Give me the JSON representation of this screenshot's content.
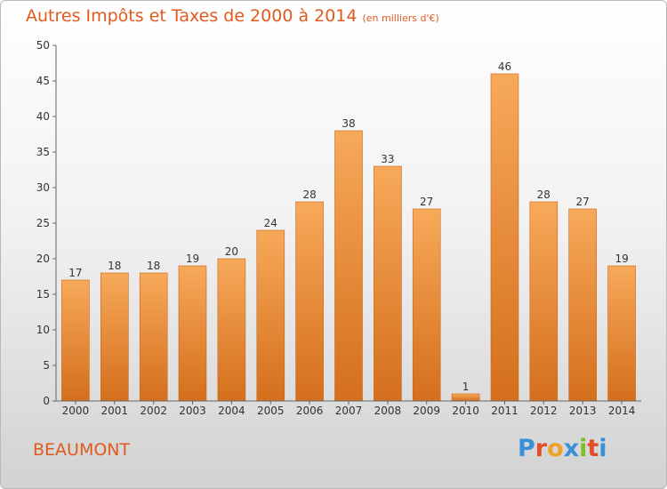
{
  "title_main": "Autres Impôts et Taxes de 2000 à 2014",
  "title_unit": "(en milliers d'€)",
  "commune": "BEAUMONT",
  "logo_text": "Proxiti",
  "colors": {
    "accent": "#e05a1e",
    "bar_light": "#f7a95a",
    "bar_dark": "#d46f1c",
    "logo": [
      "#3a8fd9",
      "#e24d2a",
      "#f0a12a",
      "#3a8fd9",
      "#7bbf2a",
      "#e24d2a",
      "#3a8fd9"
    ]
  },
  "chart_data": {
    "type": "bar",
    "title": "Autres Impôts et Taxes de 2000 à 2014",
    "subtitle": "(en milliers d'€)",
    "categories": [
      "2000",
      "2001",
      "2002",
      "2003",
      "2004",
      "2005",
      "2006",
      "2007",
      "2008",
      "2009",
      "2010",
      "2011",
      "2012",
      "2013",
      "2014"
    ],
    "values": [
      17,
      18,
      18,
      19,
      20,
      24,
      28,
      38,
      33,
      27,
      1,
      46,
      28,
      27,
      19
    ],
    "ylim": [
      0,
      50
    ],
    "yticks": [
      0,
      5,
      10,
      15,
      20,
      25,
      30,
      35,
      40,
      45,
      50
    ],
    "grid": false,
    "legend": "none"
  }
}
